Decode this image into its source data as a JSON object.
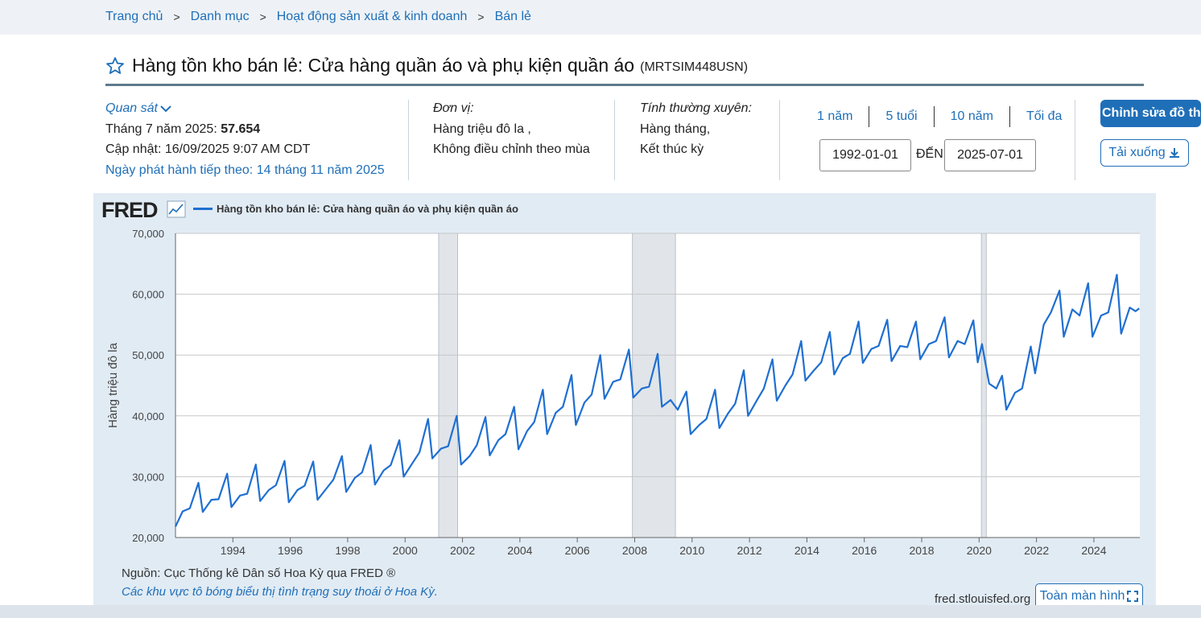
{
  "breadcrumb": [
    "Trang chủ",
    "Danh mục",
    "Hoạt động sản xuất & kinh doanh",
    "Bán lẻ"
  ],
  "breadcrumb_sep": ">",
  "series": {
    "title": "Hàng tồn kho bán lẻ: Cửa hàng quần áo và phụ kiện quần áo",
    "code": "(MRTSIM448USN)"
  },
  "observation": {
    "label": "Quan sát",
    "date_label": "Tháng 7 năm 2025:",
    "value": "57.654",
    "updated": "Cập nhật: 16/09/2025 9:07 AM CDT",
    "next_release": "Ngày phát hành tiếp theo: 14 tháng 11 năm 2025"
  },
  "units": {
    "header": "Đơn vị:",
    "line1": "Hàng triệu đô la ,",
    "line2": "Không điều chỉnh theo mùa"
  },
  "frequency": {
    "header": "Tính thường xuyên:",
    "line1": "Hàng tháng,",
    "line2": "Kết thúc kỳ"
  },
  "range_tabs": [
    "1 năm",
    "5 tuổi",
    "10 năm",
    "Tối đa"
  ],
  "date_range": {
    "start": "1992-01-01",
    "to_label": "ĐẾN",
    "end": "2025-07-01"
  },
  "buttons": {
    "edit": "Chỉnh sửa đồ thị",
    "download": "Tải xuống",
    "fullscreen": "Toàn màn hình"
  },
  "logo": "FRED",
  "source": "Nguồn: Cục Thống kê Dân số Hoa Kỳ qua FRED ®",
  "recession_note": "Các khu vực tô bóng biểu thị tình trạng suy thoái ở Hoa Kỳ.",
  "fred_url": "fred.stlouisfed.org",
  "colors": {
    "accent": "#1f6fb8",
    "line": "#1f6fd1",
    "panel": "#e1ebf4",
    "recession": "#e1e5e9"
  },
  "chart_data": {
    "type": "line",
    "title": "",
    "legend": [
      "Hàng tồn kho bán lẻ: Cửa hàng quần áo và phụ kiện quần áo"
    ],
    "ylabel": "Hàng triệu đô la",
    "xlabel": "",
    "xlim": [
      1992.0,
      2025.6
    ],
    "ylim": [
      20000,
      70000
    ],
    "x_ticks": [
      1994,
      1996,
      1998,
      2000,
      2002,
      2004,
      2006,
      2008,
      2010,
      2012,
      2014,
      2016,
      2018,
      2020,
      2022,
      2024
    ],
    "y_ticks": [
      20000,
      30000,
      40000,
      50000,
      60000,
      70000
    ],
    "y_tick_labels": [
      "20,000",
      "30,000",
      "40,000",
      "50,000",
      "60,000",
      "70,000"
    ],
    "recessions": [
      [
        2001.17,
        2001.83
      ],
      [
        2007.92,
        2009.42
      ],
      [
        2020.08,
        2020.25
      ]
    ],
    "series": [
      {
        "name": "Hàng tồn kho bán lẻ: Cửa hàng quần áo và phụ kiện quần áo",
        "points": [
          [
            1992.0,
            21800
          ],
          [
            1992.25,
            24300
          ],
          [
            1992.5,
            24800
          ],
          [
            1992.8,
            29000
          ],
          [
            1992.95,
            24200
          ],
          [
            1993.25,
            26200
          ],
          [
            1993.5,
            26300
          ],
          [
            1993.8,
            30500
          ],
          [
            1993.95,
            25000
          ],
          [
            1994.25,
            26900
          ],
          [
            1994.5,
            27200
          ],
          [
            1994.8,
            32000
          ],
          [
            1994.95,
            26000
          ],
          [
            1995.25,
            27800
          ],
          [
            1995.5,
            28600
          ],
          [
            1995.8,
            32600
          ],
          [
            1995.95,
            25800
          ],
          [
            1996.25,
            27800
          ],
          [
            1996.5,
            28500
          ],
          [
            1996.8,
            32500
          ],
          [
            1996.95,
            26200
          ],
          [
            1997.25,
            28000
          ],
          [
            1997.5,
            29500
          ],
          [
            1997.8,
            33400
          ],
          [
            1997.95,
            27500
          ],
          [
            1998.25,
            29800
          ],
          [
            1998.5,
            30700
          ],
          [
            1998.8,
            35200
          ],
          [
            1998.95,
            28700
          ],
          [
            1999.25,
            31000
          ],
          [
            1999.5,
            31900
          ],
          [
            1999.8,
            36000
          ],
          [
            1999.95,
            30000
          ],
          [
            2000.25,
            32200
          ],
          [
            2000.5,
            34000
          ],
          [
            2000.8,
            39500
          ],
          [
            2000.95,
            33000
          ],
          [
            2001.25,
            34600
          ],
          [
            2001.5,
            35000
          ],
          [
            2001.8,
            40000
          ],
          [
            2001.95,
            32000
          ],
          [
            2002.25,
            33400
          ],
          [
            2002.5,
            35200
          ],
          [
            2002.8,
            39800
          ],
          [
            2002.95,
            33500
          ],
          [
            2003.25,
            36000
          ],
          [
            2003.5,
            37000
          ],
          [
            2003.8,
            41500
          ],
          [
            2003.95,
            34500
          ],
          [
            2004.25,
            37500
          ],
          [
            2004.5,
            39000
          ],
          [
            2004.8,
            44300
          ],
          [
            2004.95,
            37000
          ],
          [
            2005.25,
            40500
          ],
          [
            2005.5,
            41500
          ],
          [
            2005.8,
            46700
          ],
          [
            2005.95,
            38500
          ],
          [
            2006.25,
            42200
          ],
          [
            2006.5,
            43500
          ],
          [
            2006.8,
            50000
          ],
          [
            2006.95,
            42800
          ],
          [
            2007.25,
            45600
          ],
          [
            2007.5,
            46000
          ],
          [
            2007.8,
            50900
          ],
          [
            2007.95,
            43000
          ],
          [
            2008.25,
            44500
          ],
          [
            2008.5,
            44800
          ],
          [
            2008.8,
            50200
          ],
          [
            2008.95,
            41500
          ],
          [
            2009.25,
            42600
          ],
          [
            2009.5,
            41000
          ],
          [
            2009.8,
            44000
          ],
          [
            2009.95,
            37000
          ],
          [
            2010.25,
            38500
          ],
          [
            2010.5,
            39500
          ],
          [
            2010.8,
            44300
          ],
          [
            2010.95,
            38000
          ],
          [
            2011.25,
            40400
          ],
          [
            2011.5,
            42000
          ],
          [
            2011.8,
            47500
          ],
          [
            2011.95,
            40000
          ],
          [
            2012.25,
            42500
          ],
          [
            2012.5,
            44500
          ],
          [
            2012.8,
            49300
          ],
          [
            2012.95,
            42500
          ],
          [
            2013.25,
            45000
          ],
          [
            2013.5,
            46800
          ],
          [
            2013.8,
            52300
          ],
          [
            2013.95,
            45800
          ],
          [
            2014.25,
            47500
          ],
          [
            2014.5,
            48800
          ],
          [
            2014.8,
            53800
          ],
          [
            2014.95,
            46800
          ],
          [
            2015.25,
            49500
          ],
          [
            2015.5,
            50200
          ],
          [
            2015.8,
            55500
          ],
          [
            2015.95,
            48700
          ],
          [
            2016.25,
            51000
          ],
          [
            2016.5,
            51500
          ],
          [
            2016.8,
            55800
          ],
          [
            2016.95,
            49000
          ],
          [
            2017.25,
            51500
          ],
          [
            2017.5,
            51300
          ],
          [
            2017.8,
            55500
          ],
          [
            2017.95,
            49300
          ],
          [
            2018.25,
            51800
          ],
          [
            2018.5,
            52300
          ],
          [
            2018.8,
            56200
          ],
          [
            2018.95,
            49600
          ],
          [
            2019.25,
            52300
          ],
          [
            2019.5,
            51800
          ],
          [
            2019.8,
            55700
          ],
          [
            2019.95,
            48800
          ],
          [
            2020.1,
            51800
          ],
          [
            2020.35,
            45300
          ],
          [
            2020.6,
            44500
          ],
          [
            2020.8,
            46600
          ],
          [
            2020.95,
            41000
          ],
          [
            2021.25,
            43800
          ],
          [
            2021.5,
            44500
          ],
          [
            2021.8,
            51400
          ],
          [
            2021.95,
            47000
          ],
          [
            2022.25,
            55000
          ],
          [
            2022.5,
            57000
          ],
          [
            2022.8,
            60600
          ],
          [
            2022.95,
            53000
          ],
          [
            2023.25,
            57500
          ],
          [
            2023.5,
            56500
          ],
          [
            2023.8,
            61800
          ],
          [
            2023.95,
            53000
          ],
          [
            2024.25,
            56500
          ],
          [
            2024.5,
            57000
          ],
          [
            2024.8,
            63200
          ],
          [
            2024.95,
            53500
          ],
          [
            2025.25,
            57800
          ],
          [
            2025.45,
            57200
          ],
          [
            2025.58,
            57654
          ]
        ]
      }
    ]
  }
}
